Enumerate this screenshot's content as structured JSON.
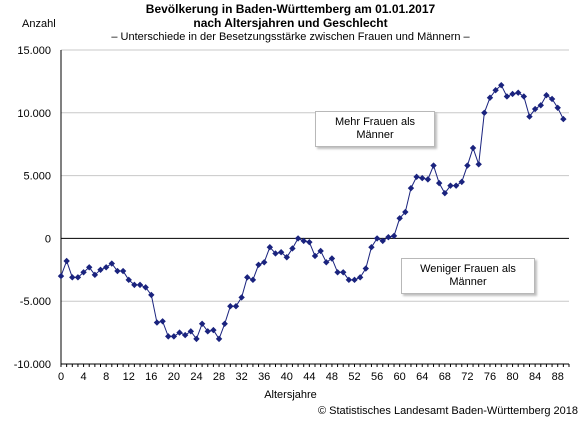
{
  "title_line1": "Bevölkerung in Baden-Württemberg am 01.01.2017",
  "title_line2": "nach Altersjahren und Geschlecht",
  "subtitle": "– Unterschiede in der Besetzungsstärke zwischen Frauen und Männern –",
  "source": "© Statistisches Landesamt Baden-Württemberg 2018",
  "annotations": {
    "more_women": "Mehr Frauen als Männer",
    "fewer_women": "Weniger Frauen als Männer"
  },
  "colors": {
    "series": "#1a237e",
    "axis": "#000000",
    "grid": "#c8c8c8"
  },
  "chart_data": {
    "type": "line",
    "title": "Bevölkerung in Baden-Württemberg am 01.01.2017 nach Altersjahren und Geschlecht",
    "xlabel": "Altersjahre",
    "ylabel": "Anzahl",
    "xlim": [
      0,
      90
    ],
    "ylim": [
      -10000,
      15000
    ],
    "x_ticks": [
      "0",
      "4",
      "8",
      "12",
      "16",
      "20",
      "24",
      "28",
      "32",
      "36",
      "40",
      "44",
      "48",
      "52",
      "56",
      "60",
      "64",
      "68",
      "72",
      "76",
      "80",
      "84",
      "88"
    ],
    "y_ticks": [
      "-10.000",
      "-5.000",
      "0",
      "5.000",
      "10.000",
      "15.000"
    ],
    "grid": "horizontal",
    "series": [
      {
        "x": [
          0,
          1,
          2,
          3,
          4,
          5,
          6,
          7,
          8,
          9,
          10,
          11,
          12,
          13,
          14,
          15,
          16,
          17,
          18,
          19,
          20,
          21,
          22,
          23,
          24,
          25,
          26,
          27,
          28,
          29,
          30,
          31,
          32,
          33,
          34,
          35,
          36,
          37,
          38,
          39,
          40,
          41,
          42,
          43,
          44,
          45,
          46,
          47,
          48,
          49,
          50,
          51,
          52,
          53,
          54,
          55,
          56,
          57,
          58,
          59,
          60,
          61,
          62,
          63,
          64,
          65,
          66,
          67,
          68,
          69,
          70,
          71,
          72,
          73,
          74,
          75,
          76,
          77,
          78,
          79,
          80,
          81,
          82,
          83,
          84,
          85,
          86,
          87,
          88,
          89
        ],
        "values": [
          -3000,
          -1800,
          -3100,
          -3100,
          -2700,
          -2300,
          -2900,
          -2500,
          -2300,
          -2000,
          -2600,
          -2600,
          -3300,
          -3700,
          -3700,
          -3900,
          -4500,
          -6700,
          -6600,
          -7800,
          -7800,
          -7500,
          -7700,
          -7400,
          -8000,
          -6800,
          -7400,
          -7300,
          -8000,
          -6800,
          -5400,
          -5400,
          -4700,
          -3100,
          -3300,
          -2100,
          -1900,
          -700,
          -1200,
          -1100,
          -1500,
          -800,
          0,
          -200,
          -300,
          -1400,
          -1000,
          -1900,
          -1600,
          -2700,
          -2700,
          -3300,
          -3300,
          -3100,
          -2400,
          -700,
          0,
          -200,
          100,
          200,
          1600,
          2100,
          4000,
          4900,
          4800,
          4700,
          5800,
          4400,
          3600,
          4200,
          4200,
          4500,
          5800,
          7200,
          5900,
          10000,
          11200,
          11800,
          12200,
          11300,
          11500,
          11600,
          11300,
          9700,
          10300,
          10600,
          11400,
          11100,
          10400,
          9500
        ]
      }
    ]
  }
}
